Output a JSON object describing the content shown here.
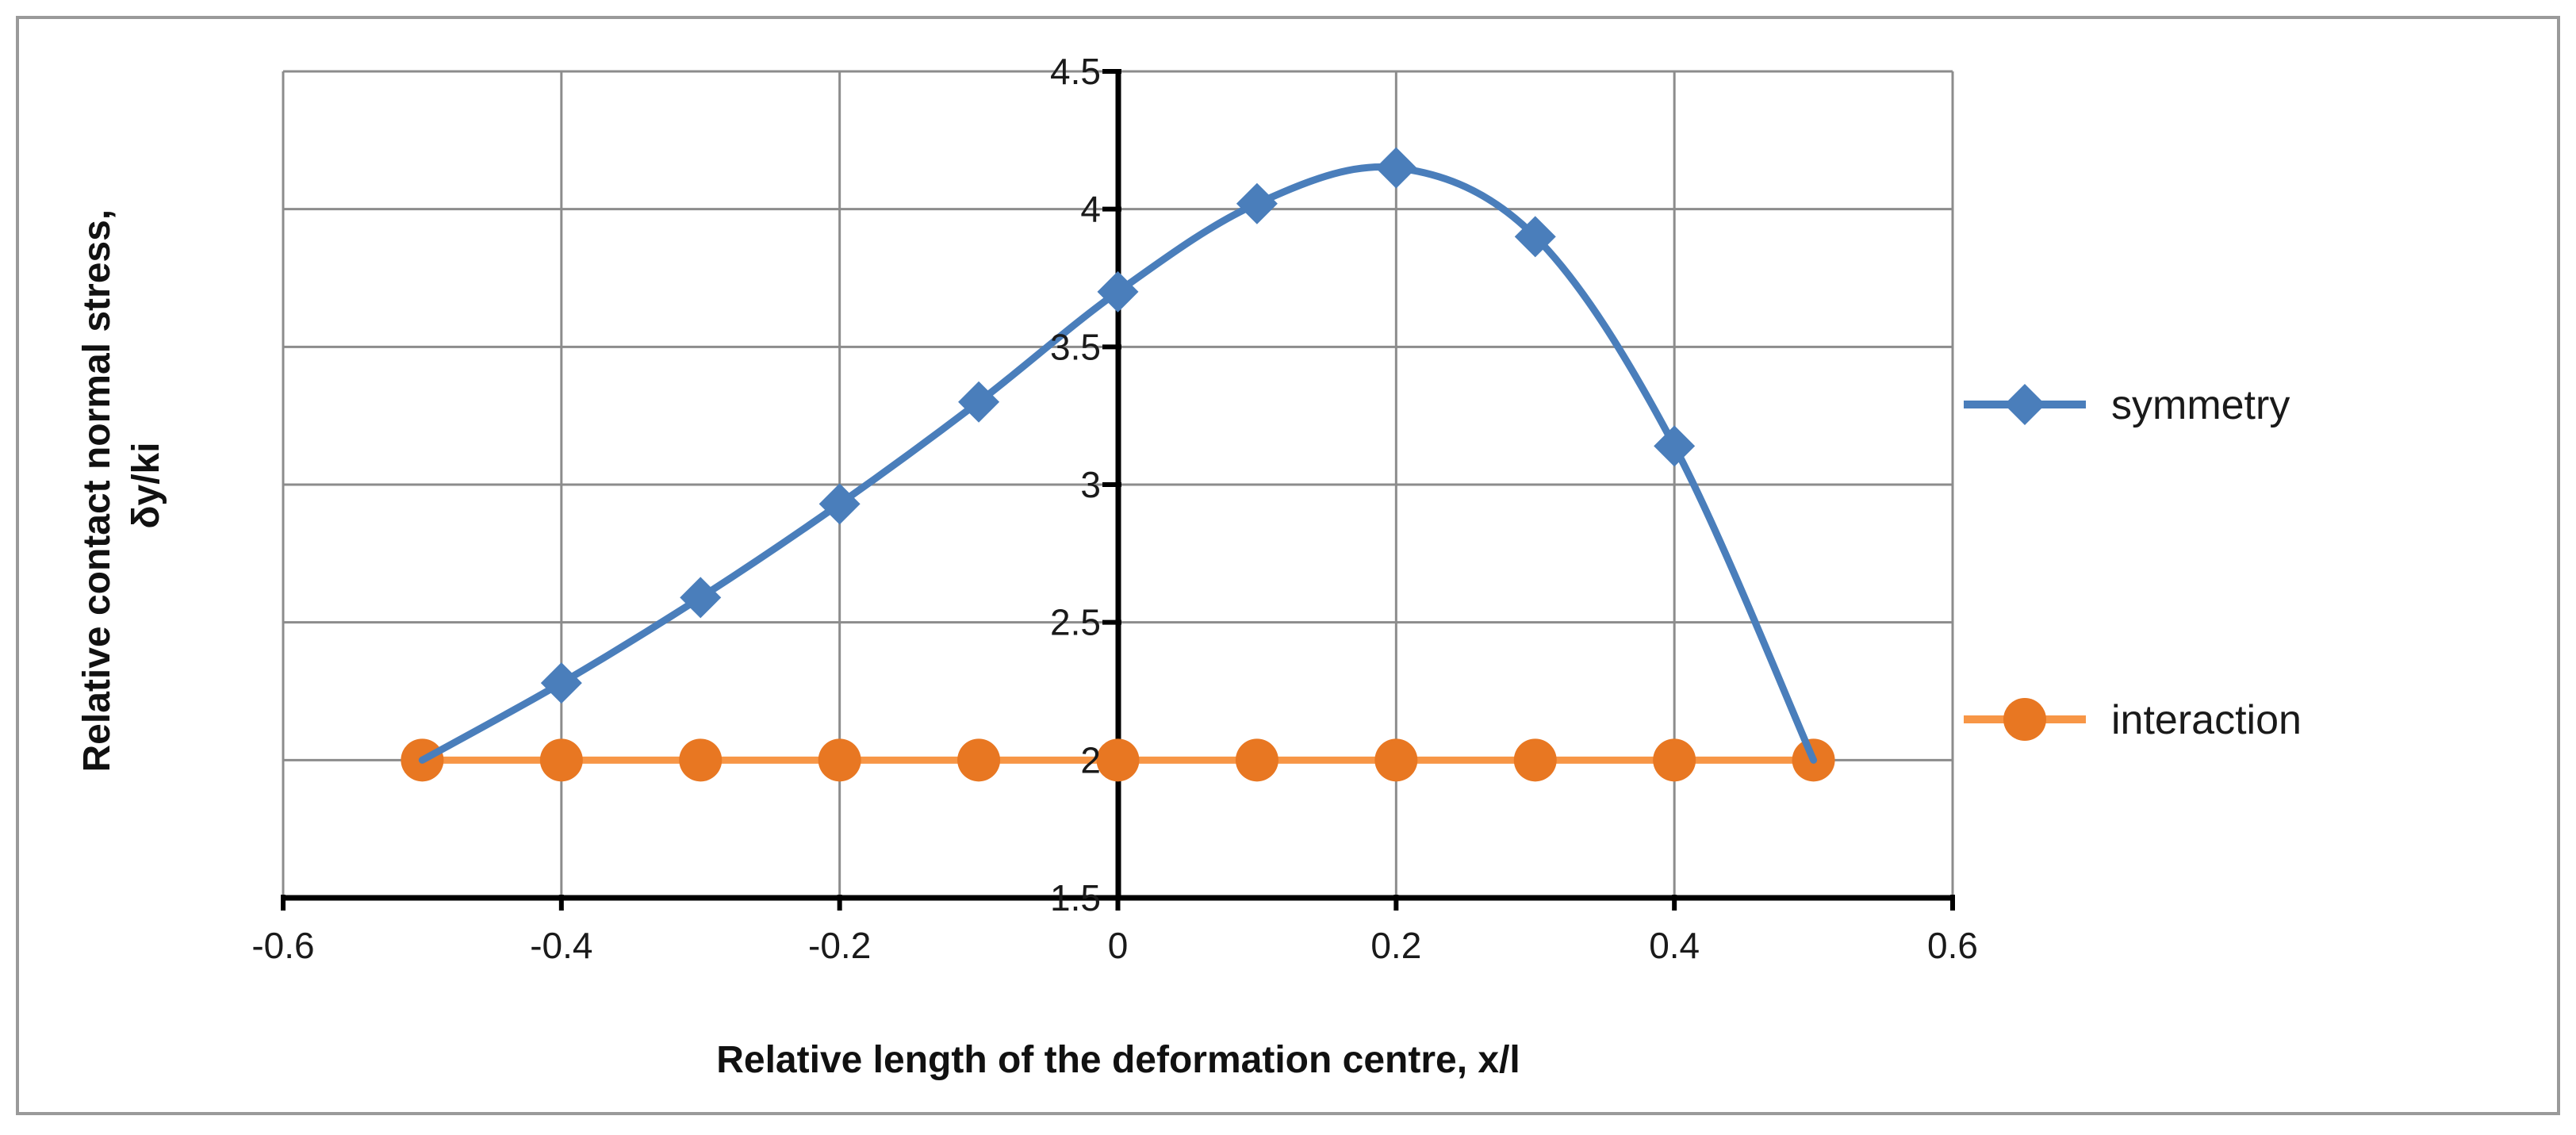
{
  "chart_data": {
    "type": "line",
    "title": "",
    "xlabel": "Relative length of the deformation centre, x/l",
    "ylabel": [
      "Relative contact normal stress,",
      "δy/ki"
    ],
    "xlim": [
      -0.6,
      0.6
    ],
    "ylim": [
      1.5,
      4.5
    ],
    "xticks": [
      -0.6,
      -0.4,
      -0.2,
      0,
      0.2,
      0.4,
      0.6
    ],
    "xtick_labels": [
      "-0.6",
      "-0.4",
      "-0.2",
      "0",
      "0.2",
      "0.4",
      "0.6"
    ],
    "yticks": [
      1.5,
      2,
      2.5,
      3,
      3.5,
      4,
      4.5
    ],
    "ytick_labels": [
      "1.5",
      "2",
      "2.5",
      "3",
      "3.5",
      "4",
      "4.5"
    ],
    "grid": true,
    "legend_position": "right",
    "series": [
      {
        "name": "symmetry",
        "color": "#4A7EBB",
        "marker": "diamond",
        "smooth": true,
        "x": [
          -0.5,
          -0.4,
          -0.3,
          -0.2,
          -0.1,
          0,
          0.1,
          0.2,
          0.3,
          0.4,
          0.5
        ],
        "y": [
          2.0,
          2.28,
          2.59,
          2.93,
          3.3,
          3.7,
          4.02,
          4.15,
          3.9,
          3.14,
          2.0
        ]
      },
      {
        "name": "interaction",
        "color": "#E87722",
        "line_color": "#F79646",
        "marker": "circle",
        "smooth": false,
        "x": [
          -0.5,
          -0.4,
          -0.3,
          -0.2,
          -0.1,
          0,
          0.1,
          0.2,
          0.3,
          0.4,
          0.5
        ],
        "y": [
          2,
          2,
          2,
          2,
          2,
          2,
          2,
          2,
          2,
          2,
          2
        ]
      }
    ]
  }
}
